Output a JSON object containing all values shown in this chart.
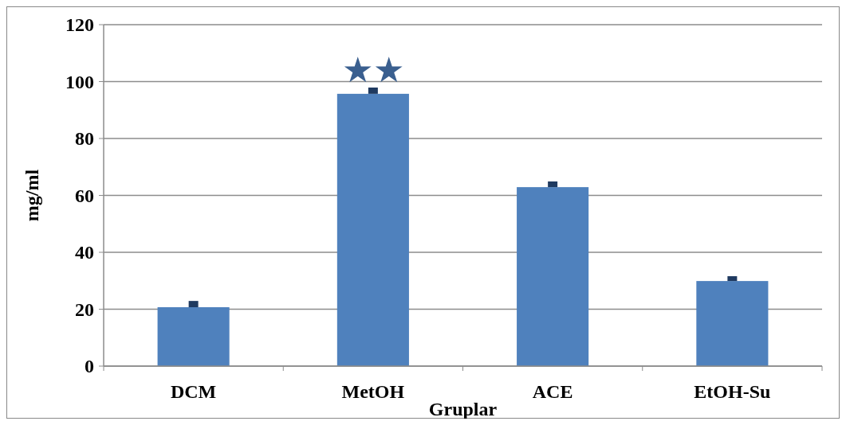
{
  "chart_data": {
    "type": "bar",
    "categories": [
      "DCM",
      "MetOH",
      "ACE",
      "EtOH-Su"
    ],
    "values": [
      20.7,
      95.7,
      62.9,
      29.9
    ],
    "errors": [
      [
        20.7,
        22.9
      ],
      [
        95.7,
        97.9
      ],
      [
        62.9,
        64.9
      ],
      [
        29.9,
        31.6
      ]
    ],
    "color": "#4f81bd",
    "xlabel": "Gruplar",
    "ylabel": "mg/ml",
    "ylim": [
      0,
      120
    ],
    "yticks": [
      0,
      20,
      40,
      60,
      80,
      100,
      120
    ],
    "grid": "y",
    "annotations": [
      "★★"
    ]
  }
}
